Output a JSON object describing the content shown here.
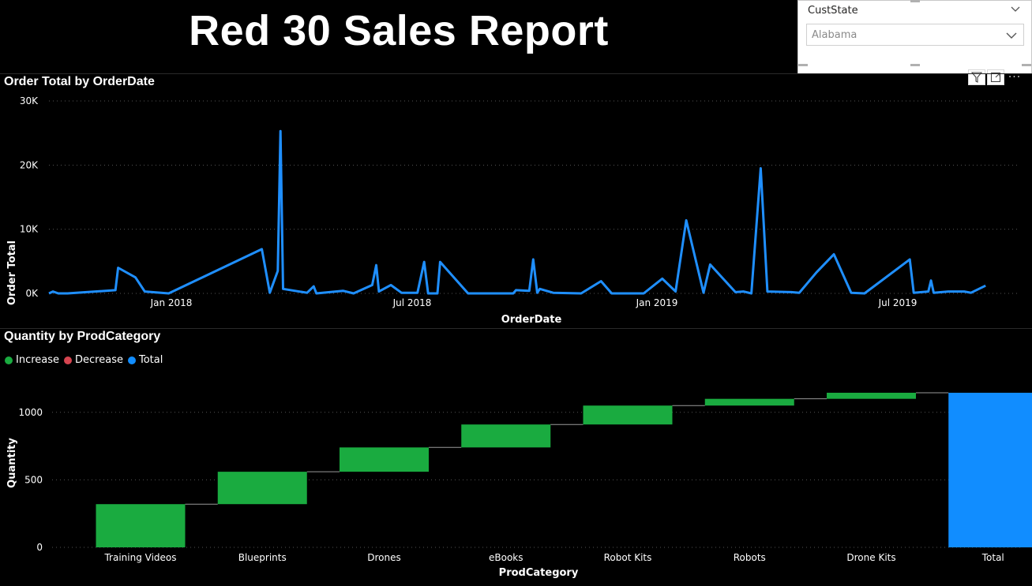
{
  "report": {
    "title": "Red 30 Sales Report"
  },
  "slicer": {
    "field": "CustState",
    "selected": "Alabama"
  },
  "colors": {
    "line": "#1f8fff",
    "increase": "#1aab40",
    "decrease": "#d64550",
    "total": "#118dff"
  },
  "visual_toolbar": {
    "filter_icon": "filter-icon",
    "focus_icon": "focus-mode-icon",
    "more_label": "···"
  },
  "chart_data": [
    {
      "type": "line",
      "title": "Order Total by OrderDate",
      "xlabel": "OrderDate",
      "ylabel": "Order Total",
      "xticks": [
        "Jan 2018",
        "Jul 2018",
        "Jan 2019",
        "Jul 2019"
      ],
      "yticks": [
        "0K",
        "10K",
        "20K",
        "30K"
      ],
      "ylim": [
        0,
        30000
      ],
      "xlim": [
        "2017-10-01",
        "2019-10-01"
      ],
      "grid": true,
      "points": [
        [
          "2017-10-01",
          0
        ],
        [
          "2017-10-04",
          300
        ],
        [
          "2017-10-08",
          0
        ],
        [
          "2017-10-15",
          0
        ],
        [
          "2017-11-20",
          500
        ],
        [
          "2017-11-22",
          4000
        ],
        [
          "2017-12-05",
          2500
        ],
        [
          "2017-12-12",
          300
        ],
        [
          "2017-12-30",
          0
        ],
        [
          "2018-03-10",
          6900
        ],
        [
          "2018-03-16",
          100
        ],
        [
          "2018-03-22",
          3500
        ],
        [
          "2018-03-24",
          25300
        ],
        [
          "2018-03-26",
          700
        ],
        [
          "2018-04-13",
          100
        ],
        [
          "2018-04-18",
          1100
        ],
        [
          "2018-04-20",
          0
        ],
        [
          "2018-05-10",
          400
        ],
        [
          "2018-05-18",
          0
        ],
        [
          "2018-06-01",
          1300
        ],
        [
          "2018-06-04",
          4400
        ],
        [
          "2018-06-06",
          300
        ],
        [
          "2018-06-15",
          1300
        ],
        [
          "2018-06-23",
          100
        ],
        [
          "2018-07-05",
          100
        ],
        [
          "2018-07-10",
          4900
        ],
        [
          "2018-07-13",
          0
        ],
        [
          "2018-07-20",
          0
        ],
        [
          "2018-07-22",
          4900
        ],
        [
          "2018-08-12",
          0
        ],
        [
          "2018-09-15",
          0
        ],
        [
          "2018-09-17",
          500
        ],
        [
          "2018-09-27",
          400
        ],
        [
          "2018-09-30",
          5300
        ],
        [
          "2018-10-03",
          100
        ],
        [
          "2018-10-05",
          700
        ],
        [
          "2018-10-15",
          100
        ],
        [
          "2018-11-05",
          0
        ],
        [
          "2018-11-20",
          1900
        ],
        [
          "2018-11-28",
          0
        ],
        [
          "2018-12-22",
          0
        ],
        [
          "2019-01-05",
          2300
        ],
        [
          "2019-01-15",
          300
        ],
        [
          "2019-01-23",
          11400
        ],
        [
          "2019-02-05",
          100
        ],
        [
          "2019-02-10",
          4500
        ],
        [
          "2019-03-01",
          200
        ],
        [
          "2019-03-07",
          300
        ],
        [
          "2019-03-13",
          0
        ],
        [
          "2019-03-20",
          19500
        ],
        [
          "2019-03-25",
          300
        ],
        [
          "2019-04-12",
          200
        ],
        [
          "2019-04-18",
          100
        ],
        [
          "2019-05-01",
          3300
        ],
        [
          "2019-05-14",
          6100
        ],
        [
          "2019-05-27",
          100
        ],
        [
          "2019-06-06",
          0
        ],
        [
          "2019-07-10",
          5300
        ],
        [
          "2019-07-13",
          100
        ],
        [
          "2019-07-24",
          300
        ],
        [
          "2019-07-26",
          2000
        ],
        [
          "2019-07-28",
          100
        ],
        [
          "2019-08-08",
          300
        ],
        [
          "2019-08-20",
          300
        ],
        [
          "2019-08-25",
          100
        ],
        [
          "2019-09-05",
          1200
        ]
      ]
    },
    {
      "type": "waterfall",
      "title": "Quantity by ProdCategory",
      "xlabel": "ProdCategory",
      "ylabel": "Quantity",
      "legend": [
        "Increase",
        "Decrease",
        "Total"
      ],
      "legend_position": "top-left",
      "yticks": [
        "0",
        "500",
        "1000"
      ],
      "ylim": [
        0,
        1250
      ],
      "grid": true,
      "categories": [
        "Training Videos",
        "Blueprints",
        "Drones",
        "eBooks",
        "Robot Kits",
        "Robots",
        "Drone Kits",
        "Total"
      ],
      "values": [
        320,
        240,
        180,
        170,
        140,
        50,
        45,
        1145
      ],
      "kinds": [
        "increase",
        "increase",
        "increase",
        "increase",
        "increase",
        "increase",
        "increase",
        "total"
      ]
    }
  ]
}
